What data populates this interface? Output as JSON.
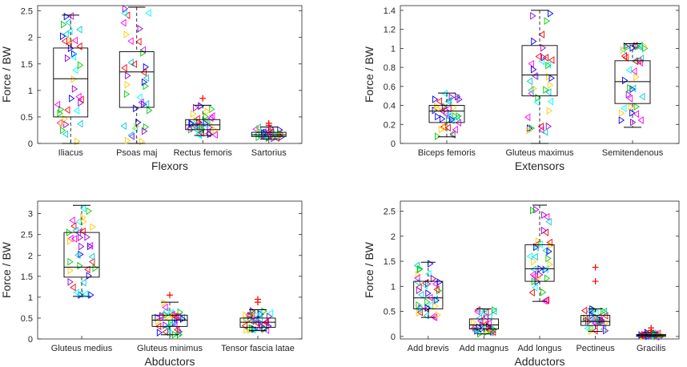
{
  "chart_data": [
    {
      "type": "box",
      "xlabel": "Flexors",
      "ylabel": "Force / BW",
      "ylim": [
        0,
        2.6
      ],
      "yticks": [
        0,
        0.5,
        1,
        1.5,
        2,
        2.5
      ],
      "categories": [
        "Iliacus",
        "Psoas maj",
        "Rectus femoris",
        "Sartorius"
      ],
      "boxes": [
        {
          "q1": 0.5,
          "median": 1.22,
          "q3": 1.8,
          "whisker_low": 0.0,
          "whisker_high": 2.42
        },
        {
          "q1": 0.68,
          "median": 1.35,
          "q3": 1.73,
          "whisker_low": 0.0,
          "whisker_high": 2.57
        },
        {
          "q1": 0.26,
          "median": 0.35,
          "q3": 0.45,
          "whisker_low": 0.15,
          "whisker_high": 0.72
        },
        {
          "q1": 0.13,
          "median": 0.16,
          "q3": 0.21,
          "whisker_low": 0.08,
          "whisker_high": 0.31
        }
      ],
      "outliers": [
        [],
        [],
        [
          0.85
        ],
        [
          0.38,
          0.34
        ]
      ]
    },
    {
      "type": "box",
      "xlabel": "Extensors",
      "ylabel": "Force / BW",
      "ylim": [
        0,
        1.45
      ],
      "yticks": [
        0,
        0.2,
        0.4,
        0.6,
        0.8,
        1,
        1.2,
        1.4
      ],
      "categories": [
        "Biceps femoris",
        "Gluteus maximus",
        "Semitendenous"
      ],
      "boxes": [
        {
          "q1": 0.22,
          "median": 0.34,
          "q3": 0.4,
          "whisker_low": 0.07,
          "whisker_high": 0.53
        },
        {
          "q1": 0.5,
          "median": 0.72,
          "q3": 1.03,
          "whisker_low": 0.0,
          "whisker_high": 1.4
        },
        {
          "q1": 0.42,
          "median": 0.65,
          "q3": 0.87,
          "whisker_low": 0.17,
          "whisker_high": 1.05
        }
      ],
      "outliers": [
        [],
        [],
        []
      ]
    },
    {
      "type": "box",
      "xlabel": "Abductors",
      "ylabel": "Force / BW",
      "ylim": [
        0,
        3.3
      ],
      "yticks": [
        0,
        0.5,
        1,
        1.5,
        2,
        2.5,
        3
      ],
      "categories": [
        "Gluteus medius",
        "Gluteus minimus",
        "Tensor fascia latae"
      ],
      "boxes": [
        {
          "q1": 1.48,
          "median": 1.72,
          "q3": 2.55,
          "whisker_low": 1.02,
          "whisker_high": 3.2
        },
        {
          "q1": 0.3,
          "median": 0.45,
          "q3": 0.57,
          "whisker_low": 0.1,
          "whisker_high": 0.88
        },
        {
          "q1": 0.28,
          "median": 0.4,
          "q3": 0.5,
          "whisker_low": 0.2,
          "whisker_high": 0.7
        }
      ],
      "outliers": [
        [],
        [
          1.05
        ],
        [
          0.95,
          0.88
        ]
      ]
    },
    {
      "type": "box",
      "xlabel": "Adductors",
      "ylabel": "Force / BW",
      "ylim": [
        -0.05,
        2.7
      ],
      "yticks": [
        0,
        0.5,
        1,
        1.5,
        2,
        2.5
      ],
      "categories": [
        "Add brevis",
        "Add magnus",
        "Add longus",
        "Pectineus",
        "Gracilis"
      ],
      "boxes": [
        {
          "q1": 0.55,
          "median": 0.77,
          "q3": 1.1,
          "whisker_low": 0.38,
          "whisker_high": 1.48
        },
        {
          "q1": 0.15,
          "median": 0.23,
          "q3": 0.35,
          "whisker_low": 0.05,
          "whisker_high": 0.55
        },
        {
          "q1": 1.1,
          "median": 1.35,
          "q3": 1.83,
          "whisker_low": 0.7,
          "whisker_high": 2.62
        },
        {
          "q1": 0.22,
          "median": 0.3,
          "q3": 0.42,
          "whisker_low": 0.1,
          "whisker_high": 0.55
        },
        {
          "q1": 0.0,
          "median": 0.02,
          "q3": 0.04,
          "whisker_low": 0.0,
          "whisker_high": 0.08
        }
      ],
      "outliers": [
        [],
        [],
        [],
        [
          1.38,
          1.1
        ],
        [
          0.17,
          0.12
        ]
      ]
    }
  ],
  "palette": [
    "#0000ff",
    "#ff0000",
    "#00cc00",
    "#ff00ff",
    "#ffcc00",
    "#00cccc",
    "#9900cc",
    "#00ffff"
  ],
  "box_color": "#000000",
  "axis_color": "#262626"
}
